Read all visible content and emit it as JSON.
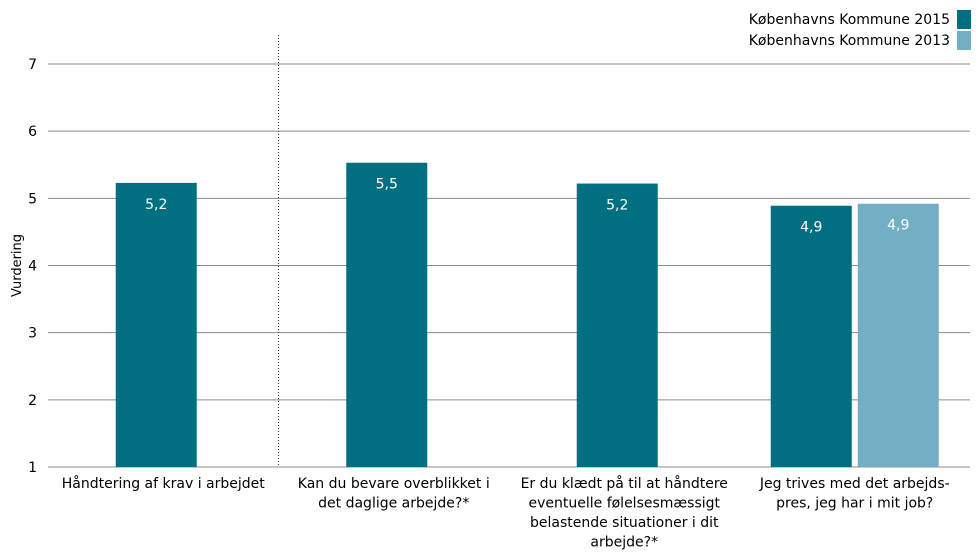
{
  "chart_data": {
    "type": "bar",
    "ylabel": "Vurdering",
    "ylim": [
      1,
      7
    ],
    "yticks": [
      "1",
      "2",
      "3",
      "4",
      "5",
      "6",
      "7"
    ],
    "grid": true,
    "legend_position": "top-right",
    "categories": [
      [
        "Håndtering af krav i arbejdet"
      ],
      [
        "Kan du bevare overblikket i",
        "det daglige arbejde?*"
      ],
      [
        "Er du klædt på til at håndtere",
        "eventuelle følelsesmæssigt",
        "belastende situationer i dit",
        "arbejde?*"
      ],
      [
        "Jeg trives med det arbejds-",
        "pres, jeg har i mit job?"
      ]
    ],
    "series": [
      {
        "name": "Københavns Kommune 2015",
        "color": "#006f80",
        "values": [
          5.23,
          5.53,
          5.22,
          4.89
        ],
        "labels": [
          "5,2",
          "5,5",
          "5,2",
          "4,9"
        ]
      },
      {
        "name": "Københavns Kommune 2013",
        "color": "#73afc4",
        "values": [
          null,
          null,
          null,
          4.92
        ],
        "labels": [
          null,
          null,
          null,
          "4,9"
        ]
      }
    ],
    "divider_after_category": 0
  }
}
